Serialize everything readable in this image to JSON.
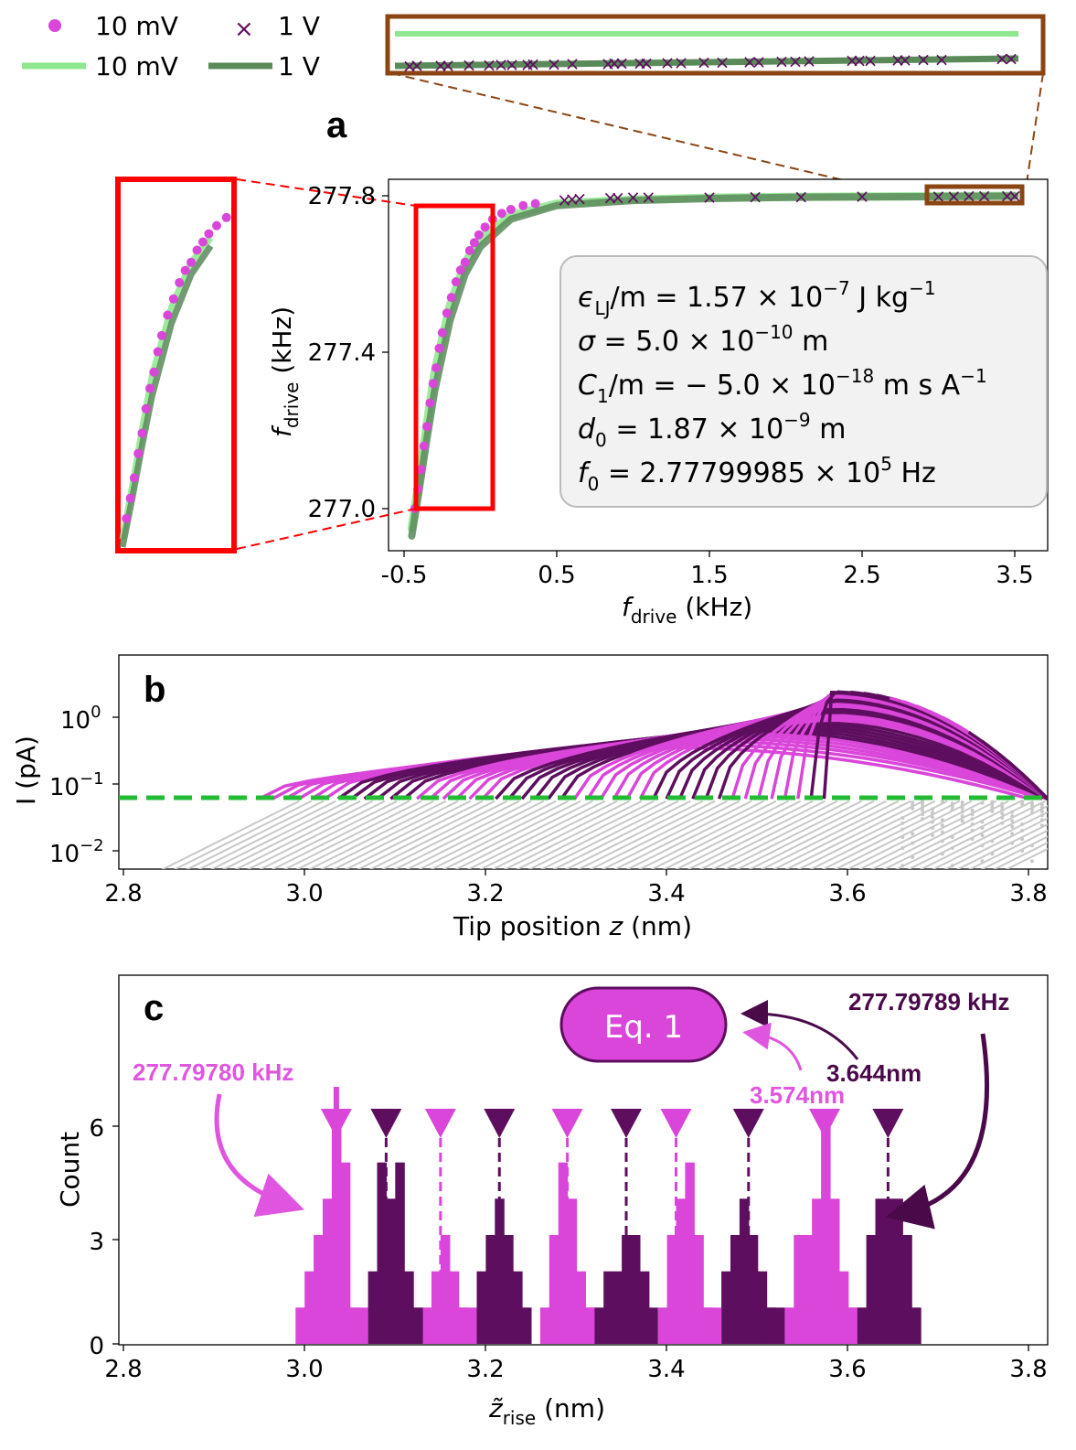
{
  "colors": {
    "magenta": "#d946d9",
    "dark_purple": "#5e0e5e",
    "light_green": "#8ee68e",
    "dark_green": "#5a8a5a",
    "gray": "#c8c8c8",
    "threshold_green": "#22bb33",
    "red": "#ff0000",
    "brown": "#8b4513",
    "light_magenta_text": "#e055e0",
    "dark_purple_text": "#4a0a4a"
  },
  "legend": {
    "items": [
      {
        "label": "10 mV",
        "marker": "dot",
        "color": "magenta"
      },
      {
        "label": "1 V",
        "marker": "x",
        "color": "dark_purple"
      },
      {
        "label": "10 mV",
        "marker": "line",
        "color": "light_green"
      },
      {
        "label": "1 V",
        "marker": "line",
        "color": "dark_green"
      }
    ]
  },
  "panel_a": {
    "letter": "a",
    "param_box": {
      "lines": [
        {
          "main": "ϵ",
          "sub": "LJ",
          "rest": "/m = 1.57 × 10",
          "sup": "−7",
          "unit": " J kg",
          "unit_sup": "−1"
        },
        {
          "main": "σ",
          "sub": "",
          "rest": " = 5.0 × 10",
          "sup": "−10",
          "unit": " m",
          "unit_sup": ""
        },
        {
          "main": "C",
          "sub": "1",
          "rest": "/m = − 5.0 × 10",
          "sup": "−18",
          "unit": " m s A",
          "unit_sup": "−1"
        },
        {
          "main": "d",
          "sub": "0",
          "rest": " = 1.87 × 10",
          "sup": "−9",
          "unit": " m",
          "unit_sup": ""
        },
        {
          "main": "f",
          "sub": "0",
          "rest": " = 2.77799985 × 10",
          "sup": "5",
          "unit": " Hz",
          "unit_sup": ""
        }
      ]
    },
    "x_axis": {
      "label_main": "f",
      "label_sub": "drive",
      "label_unit": " (kHz)",
      "ticks": [
        "-0.5",
        "0.5",
        "1.5",
        "2.5",
        "3.5"
      ]
    },
    "y_axis": {
      "label_main": "f",
      "label_sub": "drive",
      "label_unit": " (kHz)",
      "ticks": [
        "277.8",
        "277.4",
        "277.0"
      ]
    }
  },
  "panel_b": {
    "letter": "b",
    "x_axis": {
      "label_main": "Tip position ",
      "label_italic": "z",
      "label_unit": " (nm)",
      "ticks": [
        "2.8",
        "3.0",
        "3.2",
        "3.4",
        "3.6",
        "3.8"
      ]
    },
    "y_axis": {
      "label": "I (pA)",
      "ticks": [
        {
          "base": "10",
          "sup": "0"
        },
        {
          "base": "10",
          "sup": "−1"
        },
        {
          "base": "10",
          "sup": "−2"
        }
      ]
    }
  },
  "panel_c": {
    "letter": "c",
    "eq_label": "Eq. 1",
    "annotations": {
      "left_freq": "277.79780 kHz",
      "right_freq": "277.79789 kHz",
      "left_z": "3.574nm",
      "right_z": "3.644nm"
    },
    "x_axis": {
      "label_main": "z̃",
      "label_sub": "rise",
      "label_unit": " (nm)",
      "ticks": [
        "2.8",
        "3.0",
        "3.2",
        "3.4",
        "3.6",
        "3.8"
      ]
    },
    "y_axis": {
      "label": "Count",
      "ticks": [
        "0",
        "3",
        "6"
      ]
    }
  },
  "chart_data": [
    {
      "id": "a",
      "type": "scatter",
      "xlim": [
        -0.6,
        3.6
      ],
      "ylim": [
        276.9,
        277.85
      ],
      "series": [
        {
          "name": "10 mV",
          "kind": "fit-line",
          "color": "light_green",
          "x": [
            -0.45,
            -0.4,
            -0.35,
            -0.3,
            -0.2,
            -0.1,
            0.0,
            0.2,
            0.5,
            1.0,
            1.5,
            2.0,
            2.5,
            3.0,
            3.5
          ],
          "y": [
            276.95,
            277.08,
            277.22,
            277.35,
            277.52,
            277.63,
            277.69,
            277.75,
            277.78,
            277.79,
            277.795,
            277.797,
            277.798,
            277.799,
            277.8
          ]
        },
        {
          "name": "1 V",
          "kind": "fit-line",
          "color": "dark_green",
          "x": [
            -0.45,
            -0.4,
            -0.35,
            -0.3,
            -0.2,
            -0.1,
            0.0,
            0.2,
            0.5,
            1.0,
            1.5,
            2.0,
            2.5,
            3.0,
            3.5
          ],
          "y": [
            276.93,
            277.05,
            277.18,
            277.3,
            277.48,
            277.6,
            277.67,
            277.74,
            277.775,
            277.788,
            277.793,
            277.796,
            277.797,
            277.798,
            277.799
          ]
        },
        {
          "name": "10 mV",
          "kind": "points",
          "color": "magenta",
          "x": [
            -0.43,
            -0.41,
            -0.39,
            -0.37,
            -0.35,
            -0.33,
            -0.31,
            -0.29,
            -0.27,
            -0.25,
            -0.22,
            -0.19,
            -0.16,
            -0.13,
            -0.1,
            -0.07,
            -0.04,
            -0.01,
            0.03,
            0.08,
            0.14,
            0.2,
            0.28,
            0.36
          ],
          "y": [
            277.0,
            277.05,
            277.1,
            277.16,
            277.21,
            277.27,
            277.32,
            277.36,
            277.41,
            277.45,
            277.5,
            277.54,
            277.58,
            277.61,
            277.63,
            277.66,
            277.68,
            277.7,
            277.72,
            277.74,
            277.755,
            277.765,
            277.775,
            277.78
          ]
        },
        {
          "name": "1 V",
          "kind": "x-points",
          "color": "dark_purple",
          "x": [
            0.55,
            0.6,
            0.65,
            0.85,
            0.9,
            1.0,
            1.1,
            1.5,
            1.8,
            2.1,
            2.5,
            3.0,
            3.1,
            3.2,
            3.3,
            3.45,
            3.5
          ],
          "y": [
            277.79,
            277.792,
            277.793,
            277.795,
            277.795,
            277.796,
            277.796,
            277.797,
            277.798,
            277.798,
            277.799,
            277.799,
            277.799,
            277.8,
            277.8,
            277.8,
            277.8
          ]
        }
      ]
    },
    {
      "id": "b",
      "type": "line",
      "yscale": "log",
      "xlim": [
        2.8,
        3.85
      ],
      "ylim": [
        0.005,
        6
      ],
      "threshold": 0.06,
      "series": [
        {
          "name": "below-threshold",
          "color": "gray"
        },
        {
          "name": "10 mV",
          "color": "magenta"
        },
        {
          "name": "1 V",
          "color": "dark_purple"
        }
      ]
    },
    {
      "id": "c",
      "type": "bar",
      "xlim": [
        2.8,
        3.85
      ],
      "ylim": [
        0,
        8
      ],
      "bin_width": 0.01,
      "series": [
        {
          "name": "10 mV",
          "color": "magenta",
          "x": [
            2.99,
            3.0,
            3.01,
            3.02,
            3.03,
            3.04,
            3.05,
            3.13,
            3.14,
            3.15,
            3.16,
            3.17,
            3.26,
            3.27,
            3.28,
            3.29,
            3.3,
            3.31,
            3.39,
            3.4,
            3.41,
            3.42,
            3.43,
            3.44,
            3.53,
            3.54,
            3.55,
            3.56,
            3.57,
            3.58,
            3.59,
            3.6
          ],
          "values": [
            1,
            2,
            3,
            4,
            6,
            5,
            1,
            1,
            2,
            3,
            2,
            1,
            1,
            3,
            5,
            4,
            2,
            1,
            1,
            3,
            4,
            5,
            3,
            1,
            1,
            3,
            3,
            4,
            6,
            4,
            2,
            1
          ]
        },
        {
          "name": "1 V",
          "color": "dark_purple",
          "x": [
            3.07,
            3.08,
            3.09,
            3.1,
            3.11,
            3.12,
            3.19,
            3.2,
            3.21,
            3.22,
            3.23,
            3.24,
            3.32,
            3.33,
            3.34,
            3.35,
            3.36,
            3.37,
            3.46,
            3.47,
            3.48,
            3.49,
            3.5,
            3.51,
            3.61,
            3.62,
            3.63,
            3.64,
            3.65,
            3.66,
            3.67
          ],
          "values": [
            2,
            5,
            4,
            5,
            2,
            1,
            2,
            3,
            4,
            3,
            2,
            1,
            1,
            2,
            2,
            3,
            3,
            2,
            2,
            3,
            4,
            3,
            2,
            1,
            1,
            3,
            4,
            4,
            4,
            3,
            1
          ]
        }
      ],
      "markers_10mV": [
        3.035,
        3.15,
        3.29,
        3.41,
        3.574
      ],
      "markers_1V": [
        3.09,
        3.215,
        3.355,
        3.49,
        3.644
      ]
    }
  ]
}
